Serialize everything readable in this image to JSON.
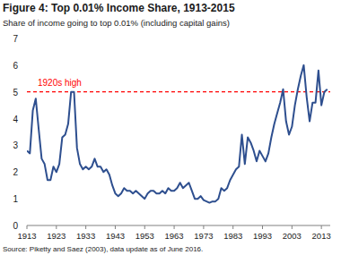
{
  "chart_data": {
    "type": "line",
    "title": "Figure 4: Top 0.01% Income Share, 1913-2015",
    "subtitle": "Share of income going to top 0.01% (including capital gains)",
    "source": "Source: Piketty and Saez (2003), data update as of June 2016.",
    "color": "#2e4f8f",
    "x": [
      1913,
      1914,
      1915,
      1916,
      1917,
      1918,
      1919,
      1920,
      1921,
      1922,
      1923,
      1924,
      1925,
      1926,
      1927,
      1928,
      1929,
      1930,
      1931,
      1932,
      1933,
      1934,
      1935,
      1936,
      1937,
      1938,
      1939,
      1940,
      1941,
      1942,
      1943,
      1944,
      1945,
      1946,
      1947,
      1948,
      1949,
      1950,
      1951,
      1952,
      1953,
      1954,
      1955,
      1956,
      1957,
      1958,
      1959,
      1960,
      1961,
      1962,
      1963,
      1964,
      1965,
      1966,
      1967,
      1968,
      1969,
      1970,
      1971,
      1972,
      1973,
      1974,
      1975,
      1976,
      1977,
      1978,
      1979,
      1980,
      1981,
      1982,
      1983,
      1984,
      1985,
      1986,
      1987,
      1988,
      1989,
      1990,
      1991,
      1992,
      1993,
      1994,
      1995,
      1996,
      1997,
      1998,
      1999,
      2000,
      2001,
      2002,
      2003,
      2004,
      2005,
      2006,
      2007,
      2008,
      2009,
      2010,
      2011,
      2012,
      2013,
      2014,
      2015
    ],
    "values": [
      2.8,
      2.7,
      4.3,
      4.75,
      3.6,
      2.5,
      2.3,
      1.7,
      1.7,
      2.2,
      2.0,
      2.3,
      3.3,
      3.4,
      3.8,
      5.0,
      5.0,
      2.9,
      2.3,
      2.1,
      2.2,
      2.1,
      2.2,
      2.5,
      2.2,
      2.2,
      2.0,
      2.1,
      1.9,
      1.5,
      1.2,
      1.1,
      1.2,
      1.4,
      1.3,
      1.3,
      1.2,
      1.3,
      1.2,
      1.1,
      1.0,
      1.2,
      1.3,
      1.3,
      1.2,
      1.2,
      1.3,
      1.2,
      1.4,
      1.3,
      1.3,
      1.4,
      1.6,
      1.4,
      1.5,
      1.6,
      1.3,
      1.0,
      1.0,
      1.1,
      0.95,
      0.9,
      0.85,
      0.9,
      0.9,
      1.0,
      1.4,
      1.3,
      1.4,
      1.7,
      1.9,
      2.1,
      2.2,
      3.4,
      2.3,
      3.3,
      3.1,
      2.8,
      2.4,
      2.8,
      2.6,
      2.4,
      2.7,
      3.3,
      3.8,
      4.2,
      4.6,
      5.1,
      3.9,
      3.4,
      3.7,
      4.5,
      5.1,
      5.6,
      6.0,
      4.8,
      3.9,
      4.6,
      4.6,
      5.8,
      4.5,
      5.0,
      5.1
    ],
    "xlim": [
      1913,
      2016
    ],
    "xticks": [
      1913,
      1923,
      1933,
      1943,
      1953,
      1963,
      1973,
      1983,
      1993,
      2003,
      2013
    ],
    "ylim": [
      0,
      7
    ],
    "yticks": [
      0,
      1,
      2,
      3,
      4,
      5,
      6,
      7
    ],
    "grid": false,
    "reference_line": {
      "value": 5,
      "label": "1920s high",
      "color": "#ff0000",
      "line_style": "dashed"
    }
  }
}
